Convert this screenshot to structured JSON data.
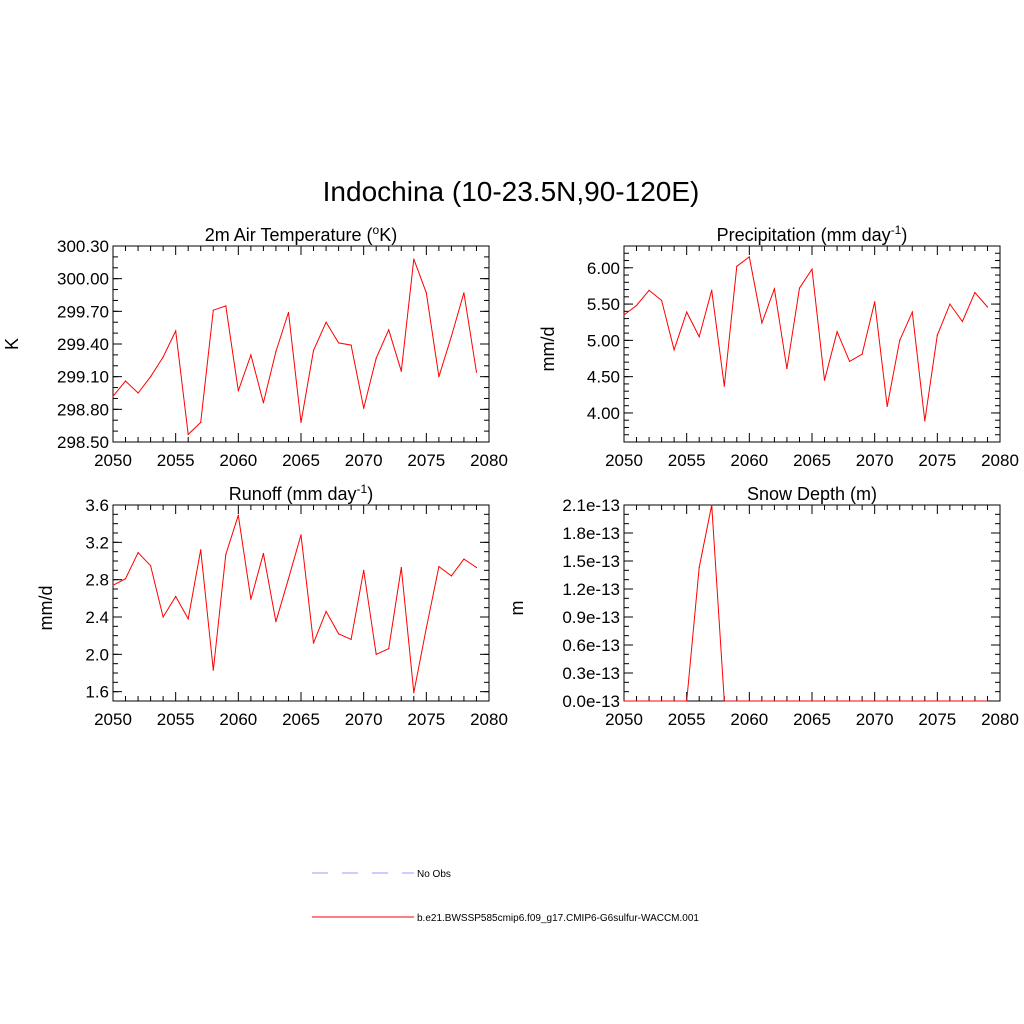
{
  "title": "Indochina (10-23.5N,90-120E)",
  "colors": {
    "series": "#ff0000",
    "obs": "#9999ff",
    "axis": "#000000"
  },
  "legend": [
    {
      "label": "No Obs",
      "style": "dashed",
      "color": "#9999ff"
    },
    {
      "label": "b.e21.BWSSP585cmip6.f09_g17.CMIP6-G6sulfur-WACCM.001",
      "style": "solid",
      "color": "#ff0000"
    }
  ],
  "chart_data": [
    {
      "type": "line",
      "title": "2m Air Temperature (°K)",
      "title_parts": {
        "pre": "2m Air Temperature (",
        "sup": "o",
        "post": "K)"
      },
      "xlabel": "",
      "ylabel": "K",
      "xlim": [
        2050,
        2080
      ],
      "ylim": [
        298.5,
        300.3
      ],
      "yticks": [
        "298.50",
        "298.80",
        "299.10",
        "299.40",
        "299.70",
        "300.00",
        "300.30"
      ],
      "ytick_values": [
        298.5,
        298.8,
        299.1,
        299.4,
        299.7,
        300.0,
        300.3
      ],
      "ytick_minor": 0.1,
      "xticks": [
        2050,
        2055,
        2060,
        2065,
        2070,
        2075,
        2080
      ],
      "x": [
        2050,
        2051,
        2052,
        2053,
        2054,
        2055,
        2056,
        2057,
        2058,
        2059,
        2060,
        2061,
        2062,
        2063,
        2064,
        2065,
        2066,
        2067,
        2068,
        2069,
        2070,
        2071,
        2072,
        2073,
        2074,
        2075,
        2076,
        2077,
        2078,
        2079
      ],
      "series": [
        {
          "values": [
            298.92,
            299.06,
            298.95,
            299.1,
            299.28,
            299.52,
            298.57,
            298.68,
            299.71,
            299.75,
            298.97,
            299.3,
            298.86,
            299.33,
            299.69,
            298.68,
            299.34,
            299.6,
            299.41,
            299.39,
            298.81,
            299.27,
            299.53,
            299.15,
            300.18,
            299.87,
            299.1,
            299.47,
            299.87,
            299.14
          ]
        }
      ]
    },
    {
      "type": "line",
      "title": "Precipitation (mm day-1)",
      "title_parts": {
        "pre": "Precipitation (mm day",
        "sup": "-1",
        "post": ")"
      },
      "xlabel": "",
      "ylabel": "mm/d",
      "xlim": [
        2050,
        2080
      ],
      "ylim": [
        3.6,
        6.3
      ],
      "yticks": [
        "4.00",
        "4.50",
        "5.00",
        "5.50",
        "6.00"
      ],
      "ytick_values": [
        4.0,
        4.5,
        5.0,
        5.5,
        6.0
      ],
      "ytick_minor": 0.1,
      "xticks": [
        2050,
        2055,
        2060,
        2065,
        2070,
        2075,
        2080
      ],
      "x": [
        2050,
        2051,
        2052,
        2053,
        2054,
        2055,
        2056,
        2057,
        2058,
        2059,
        2060,
        2061,
        2062,
        2063,
        2064,
        2065,
        2066,
        2067,
        2068,
        2069,
        2070,
        2071,
        2072,
        2073,
        2074,
        2075,
        2076,
        2077,
        2078,
        2079
      ],
      "series": [
        {
          "values": [
            5.35,
            5.48,
            5.69,
            5.55,
            4.87,
            5.39,
            5.05,
            5.69,
            4.37,
            6.02,
            6.15,
            5.24,
            5.71,
            4.61,
            5.72,
            5.98,
            4.45,
            5.12,
            4.71,
            4.81,
            5.53,
            4.09,
            5.0,
            5.39,
            3.89,
            5.07,
            5.5,
            5.26,
            5.66,
            5.46
          ]
        }
      ]
    },
    {
      "type": "line",
      "title": "Runoff (mm day-1)",
      "title_parts": {
        "pre": "Runoff (mm day",
        "sup": "-1",
        "post": ")"
      },
      "xlabel": "",
      "ylabel": "mm/d",
      "xlim": [
        2050,
        2080
      ],
      "ylim": [
        1.5,
        3.6
      ],
      "yticks": [
        "1.6",
        "2.0",
        "2.4",
        "2.8",
        "3.2",
        "3.6"
      ],
      "ytick_values": [
        1.6,
        2.0,
        2.4,
        2.8,
        3.2,
        3.6
      ],
      "ytick_minor": 0.1,
      "xticks": [
        2050,
        2055,
        2060,
        2065,
        2070,
        2075,
        2080
      ],
      "x": [
        2050,
        2051,
        2052,
        2053,
        2054,
        2055,
        2056,
        2057,
        2058,
        2059,
        2060,
        2061,
        2062,
        2063,
        2064,
        2065,
        2066,
        2067,
        2068,
        2069,
        2070,
        2071,
        2072,
        2073,
        2074,
        2075,
        2076,
        2077,
        2078,
        2079
      ],
      "series": [
        {
          "values": [
            2.74,
            2.81,
            3.09,
            2.95,
            2.4,
            2.62,
            2.38,
            3.12,
            1.83,
            3.07,
            3.49,
            2.59,
            3.08,
            2.35,
            2.81,
            3.28,
            2.12,
            2.46,
            2.22,
            2.16,
            2.9,
            2.0,
            2.06,
            2.93,
            1.59,
            2.28,
            2.94,
            2.84,
            3.02,
            2.93
          ]
        }
      ]
    },
    {
      "type": "line",
      "title": "Snow Depth (m)",
      "title_parts": {
        "pre": "Snow Depth (m)",
        "sup": "",
        "post": ""
      },
      "xlabel": "",
      "ylabel": "m",
      "xlim": [
        2050,
        2080
      ],
      "ylim": [
        0,
        2.1e-13
      ],
      "yticks": [
        "0.0e-13",
        "0.3e-13",
        "0.6e-13",
        "0.9e-13",
        "1.2e-13",
        "1.5e-13",
        "1.8e-13",
        "2.1e-13"
      ],
      "ytick_values": [
        0,
        3e-14,
        6e-14,
        9e-14,
        1.2e-13,
        1.5e-13,
        1.8e-13,
        2.1e-13
      ],
      "ytick_minor": 1e-14,
      "xticks": [
        2050,
        2055,
        2060,
        2065,
        2070,
        2075,
        2080
      ],
      "x": [
        2050,
        2051,
        2052,
        2053,
        2054,
        2055,
        2056,
        2057,
        2058,
        2059,
        2060,
        2061,
        2062,
        2063,
        2064,
        2065,
        2066,
        2067,
        2068,
        2069,
        2070,
        2071,
        2072,
        2073,
        2074,
        2075,
        2076,
        2077,
        2078,
        2079
      ],
      "series": [
        {
          "values": [
            0,
            0,
            0,
            0,
            0,
            0,
            1.43e-13,
            2.1e-13,
            0,
            0,
            0,
            0,
            0,
            0,
            0,
            0,
            0,
            0,
            0,
            0,
            0,
            0,
            0,
            0,
            0,
            0,
            0,
            0,
            0,
            0
          ]
        }
      ]
    }
  ]
}
